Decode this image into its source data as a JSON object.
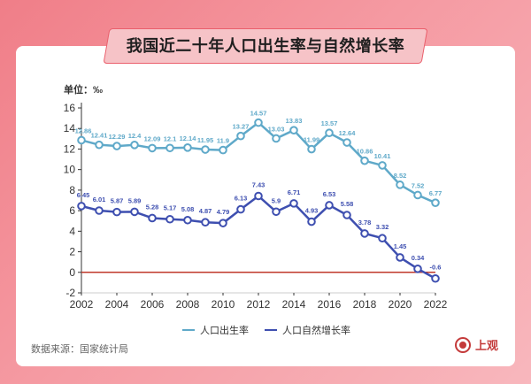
{
  "title": "我国近二十年人口出生率与自然增长率",
  "unit_label": "单位：‰",
  "source_label": "数据来源：国家统计局",
  "logo_text": "上观",
  "colors": {
    "birth_rate": "#5fa9c9",
    "natural_growth": "#3e4fb0",
    "zero_line": "#c0392b",
    "accent": "#ea5f6c"
  },
  "chart_data": {
    "type": "line",
    "x": [
      2002,
      2003,
      2004,
      2005,
      2006,
      2007,
      2008,
      2009,
      2010,
      2011,
      2012,
      2013,
      2014,
      2015,
      2016,
      2017,
      2018,
      2019,
      2020,
      2021,
      2022
    ],
    "xticks": [
      2002,
      2004,
      2006,
      2008,
      2010,
      2012,
      2014,
      2016,
      2018,
      2020,
      2022
    ],
    "yticks": [
      -2,
      0,
      2,
      4,
      6,
      8,
      10,
      12,
      14,
      16
    ],
    "ylim": [
      -2,
      16
    ],
    "xlim": [
      2002,
      2022
    ],
    "grid": false,
    "legend_position": "bottom",
    "series": [
      {
        "name": "人口出生率",
        "values": [
          12.86,
          12.41,
          12.29,
          12.4,
          12.09,
          12.1,
          12.14,
          11.95,
          11.9,
          13.27,
          14.57,
          13.03,
          13.83,
          11.99,
          13.57,
          12.64,
          10.86,
          10.41,
          8.52,
          7.52,
          6.77
        ],
        "labels": [
          "12.86",
          "12.41",
          "12.29",
          "12.4",
          "12.09",
          "12.1",
          "12.14",
          "11.95",
          "11.9",
          "13.27",
          "14.57",
          "13.03",
          "13.83",
          "11.99",
          "13.57",
          "12.64",
          "10.86",
          "10.41",
          "8.52",
          "7.52",
          "6.77"
        ]
      },
      {
        "name": "人口自然增长率",
        "values": [
          6.45,
          6.01,
          5.87,
          5.89,
          5.28,
          5.17,
          5.08,
          4.87,
          4.79,
          6.13,
          7.43,
          5.9,
          6.71,
          4.93,
          6.53,
          5.58,
          3.78,
          3.32,
          1.45,
          0.34,
          -0.6
        ],
        "labels": [
          "6.45",
          "6.01",
          "5.87",
          "5.89",
          "5.28",
          "5.17",
          "5.08",
          "4.87",
          "4.79",
          "6.13",
          "7.43",
          "5.9",
          "6.71",
          "4.93",
          "6.53",
          "5.58",
          "3.78",
          "3.32",
          "1.45",
          "0.34",
          "-0.6"
        ]
      }
    ]
  }
}
